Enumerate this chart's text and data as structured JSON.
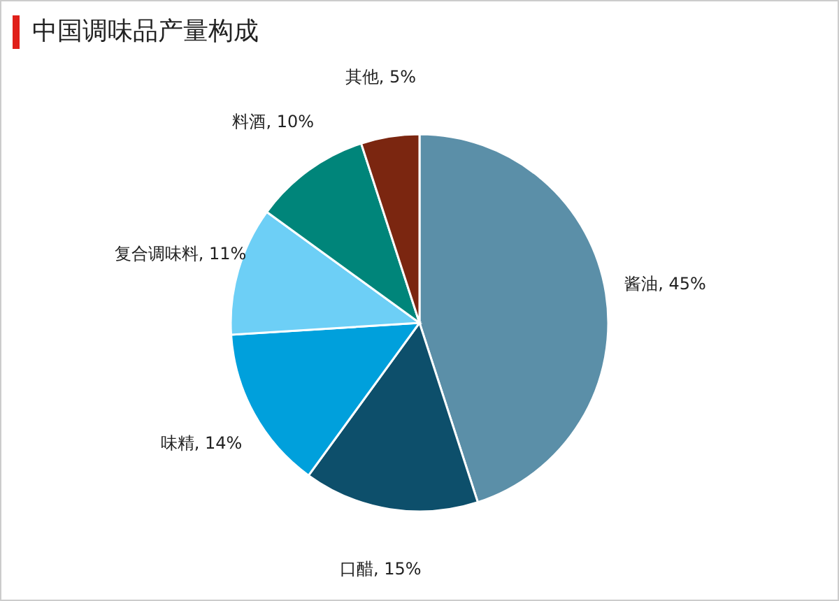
{
  "chart_data": {
    "type": "pie",
    "title": "中国调味品产量构成",
    "categories": [
      "酱油",
      "口醋",
      "味精",
      "复合调味料",
      "料酒",
      "其他"
    ],
    "values": [
      45,
      15,
      14,
      11,
      10,
      5
    ],
    "value_labels": [
      "45%",
      "15%",
      "14%",
      "11%",
      "10%",
      "5%"
    ],
    "colors": [
      "#5b8fa8",
      "#0d4f6b",
      "#00a0dc",
      "#6dcff6",
      "#00857a",
      "#7b2610"
    ],
    "legend": false
  }
}
